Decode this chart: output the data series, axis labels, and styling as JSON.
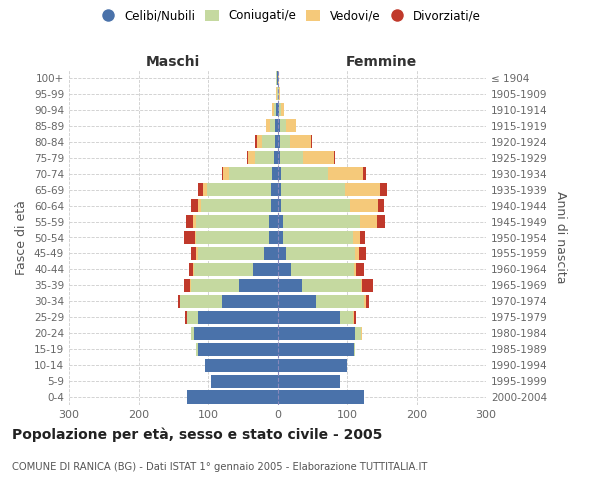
{
  "age_groups": [
    "0-4",
    "5-9",
    "10-14",
    "15-19",
    "20-24",
    "25-29",
    "30-34",
    "35-39",
    "40-44",
    "45-49",
    "50-54",
    "55-59",
    "60-64",
    "65-69",
    "70-74",
    "75-79",
    "80-84",
    "85-89",
    "90-94",
    "95-99",
    "100+"
  ],
  "birth_years": [
    "2000-2004",
    "1995-1999",
    "1990-1994",
    "1985-1989",
    "1980-1984",
    "1975-1979",
    "1970-1974",
    "1965-1969",
    "1960-1964",
    "1955-1959",
    "1950-1954",
    "1945-1949",
    "1940-1944",
    "1935-1939",
    "1930-1934",
    "1925-1929",
    "1920-1924",
    "1915-1919",
    "1910-1914",
    "1905-1909",
    "≤ 1904"
  ],
  "maschi": {
    "celibi": [
      130,
      95,
      105,
      115,
      120,
      115,
      80,
      55,
      35,
      20,
      12,
      12,
      10,
      10,
      8,
      5,
      4,
      3,
      2,
      0,
      1
    ],
    "coniugati": [
      0,
      0,
      0,
      2,
      5,
      15,
      60,
      70,
      85,
      95,
      105,
      105,
      100,
      92,
      62,
      28,
      18,
      8,
      3,
      1,
      1
    ],
    "vedovi": [
      0,
      0,
      0,
      0,
      0,
      0,
      0,
      1,
      2,
      2,
      2,
      5,
      5,
      5,
      8,
      10,
      8,
      5,
      3,
      1,
      0
    ],
    "divorziati": [
      0,
      0,
      0,
      0,
      0,
      3,
      3,
      8,
      5,
      8,
      15,
      10,
      10,
      8,
      2,
      1,
      2,
      0,
      0,
      0,
      0
    ]
  },
  "femmine": {
    "nubili": [
      125,
      90,
      100,
      110,
      112,
      90,
      55,
      35,
      20,
      12,
      8,
      8,
      5,
      5,
      5,
      4,
      3,
      4,
      2,
      1,
      1
    ],
    "coniugate": [
      0,
      0,
      0,
      2,
      8,
      18,
      70,
      85,
      90,
      100,
      100,
      110,
      100,
      92,
      68,
      32,
      15,
      8,
      3,
      1,
      0
    ],
    "vedove": [
      0,
      0,
      0,
      0,
      1,
      2,
      2,
      2,
      3,
      5,
      10,
      25,
      40,
      50,
      50,
      45,
      30,
      15,
      5,
      2,
      1
    ],
    "divorziate": [
      0,
      0,
      0,
      0,
      0,
      3,
      5,
      15,
      12,
      10,
      8,
      12,
      8,
      10,
      5,
      2,
      2,
      0,
      0,
      0,
      0
    ]
  },
  "colors": {
    "celibi": "#4a72aa",
    "coniugati": "#c5d9a0",
    "vedovi": "#f5c97a",
    "divorziati": "#c0392b"
  },
  "title": "Popolazione per età, sesso e stato civile - 2005",
  "subtitle": "COMUNE DI RANICA (BG) - Dati ISTAT 1° gennaio 2005 - Elaborazione TUTTITALIA.IT",
  "label_maschi": "Maschi",
  "label_femmine": "Femmine",
  "ylabel_left": "Fasce di età",
  "ylabel_right": "Anni di nascita",
  "xlim": 300
}
